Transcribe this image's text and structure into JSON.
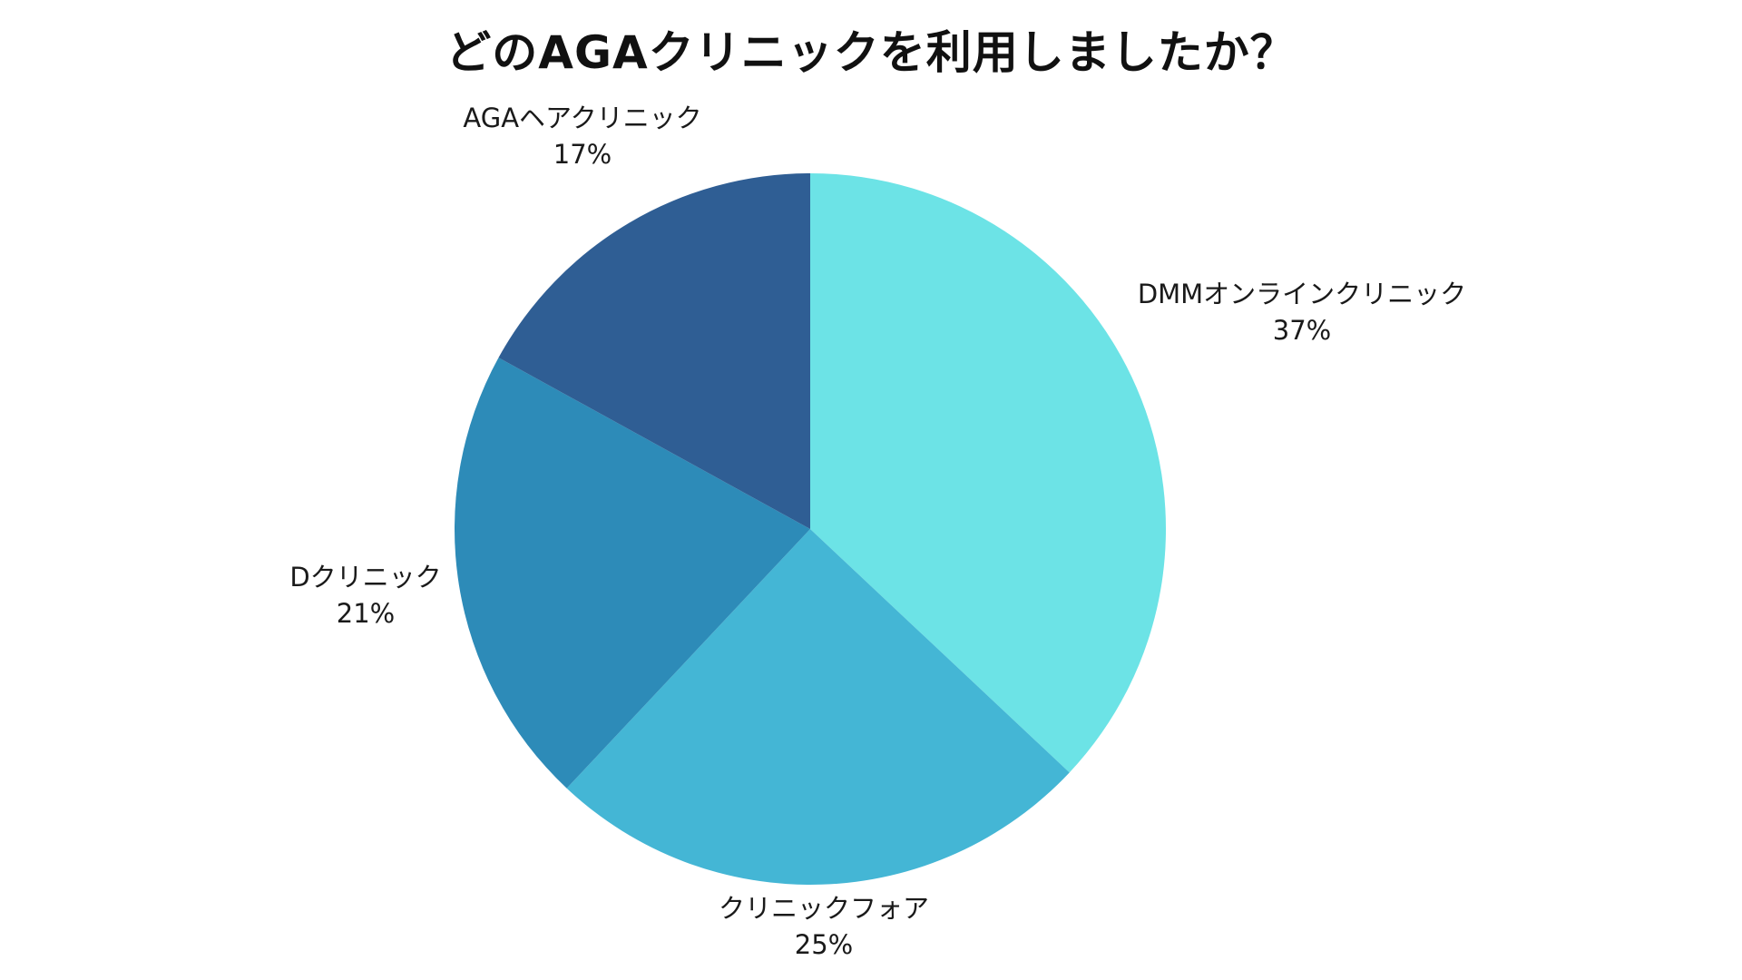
{
  "chart_data": {
    "type": "pie",
    "title": "どのAGAクリニックを利用しましたか？",
    "slices": [
      {
        "label": "DMMオンラインクリニック",
        "value": 37,
        "value_label": "37%",
        "color": "#6ce3e6"
      },
      {
        "label": "クリニックフォア",
        "value": 25,
        "value_label": "25%",
        "color": "#44b6d5"
      },
      {
        "label": "Dクリニック",
        "value": 21,
        "value_label": "21%",
        "color": "#2d8bb8"
      },
      {
        "label": "AGAヘアクリニック",
        "value": 17,
        "value_label": "17%",
        "color": "#2f5e94"
      }
    ],
    "start_angle": "12 o'clock",
    "direction": "clockwise",
    "legend": "none (labels outside slices)"
  }
}
